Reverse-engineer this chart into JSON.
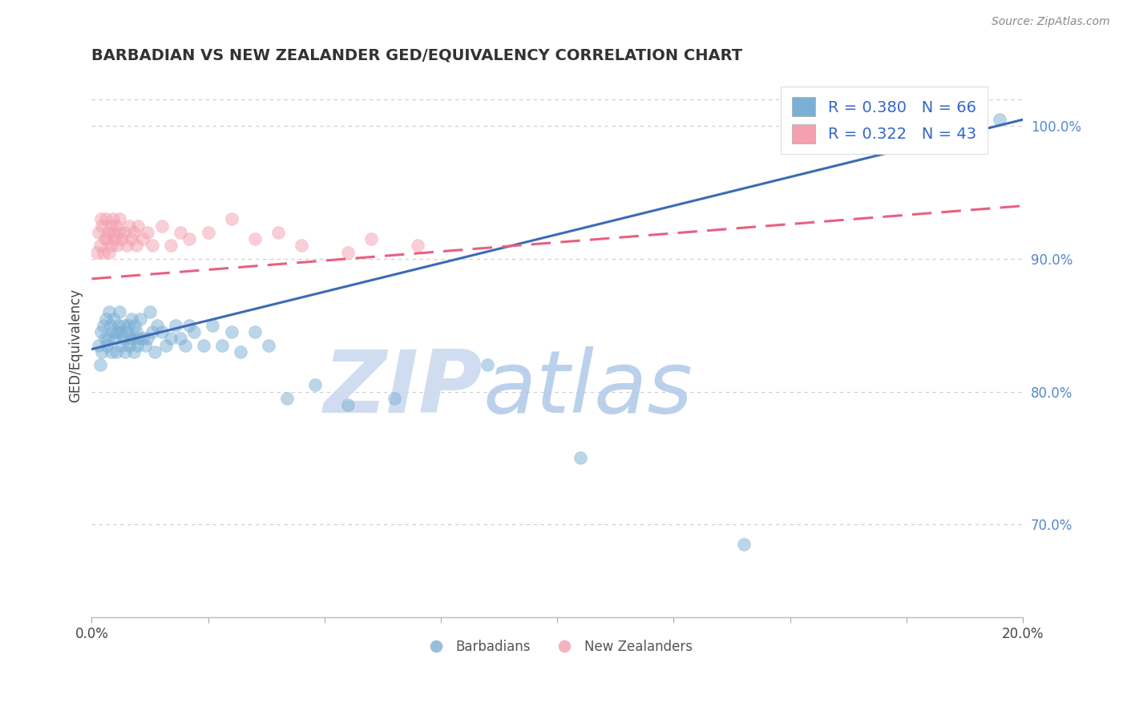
{
  "title": "BARBADIAN VS NEW ZEALANDER GED/EQUIVALENCY CORRELATION CHART",
  "source": "Source: ZipAtlas.com",
  "ylabel": "GED/Equivalency",
  "xlim": [
    0.0,
    20.0
  ],
  "ylim": [
    63.0,
    104.0
  ],
  "yticks": [
    70.0,
    80.0,
    90.0,
    100.0
  ],
  "ytick_labels": [
    "70.0%",
    "80.0%",
    "90.0%",
    "100.0%"
  ],
  "xticks": [
    0.0,
    2.5,
    5.0,
    7.5,
    10.0,
    12.5,
    15.0,
    17.5,
    20.0
  ],
  "legend_r1": "R = 0.380",
  "legend_n1": "N = 66",
  "legend_r2": "R = 0.322",
  "legend_n2": "N = 43",
  "blue_color": "#7BAFD4",
  "pink_color": "#F4A0B0",
  "blue_line_color": "#3B6BB5",
  "pink_line_color": "#E86080",
  "watermark_zip": "ZIP",
  "watermark_atlas": "atlas",
  "watermark_color_zip": "#C8D8EE",
  "watermark_color_atlas": "#B0C8E8",
  "background_color": "#FFFFFF",
  "grid_color": "#CCCCCC",
  "blue_scatter_x": [
    0.15,
    0.18,
    0.2,
    0.22,
    0.25,
    0.28,
    0.3,
    0.32,
    0.35,
    0.38,
    0.4,
    0.42,
    0.45,
    0.48,
    0.5,
    0.52,
    0.55,
    0.58,
    0.6,
    0.62,
    0.65,
    0.68,
    0.7,
    0.72,
    0.75,
    0.78,
    0.8,
    0.82,
    0.85,
    0.88,
    0.9,
    0.92,
    0.95,
    0.98,
    1.0,
    1.05,
    1.1,
    1.15,
    1.2,
    1.25,
    1.3,
    1.35,
    1.4,
    1.5,
    1.6,
    1.7,
    1.8,
    1.9,
    2.0,
    2.1,
    2.2,
    2.4,
    2.6,
    2.8,
    3.0,
    3.2,
    3.5,
    3.8,
    4.2,
    4.8,
    5.5,
    6.5,
    8.5,
    10.5,
    14.0,
    19.5
  ],
  "blue_scatter_y": [
    83.5,
    82.0,
    84.5,
    83.0,
    85.0,
    84.0,
    85.5,
    83.5,
    84.0,
    86.0,
    85.0,
    83.0,
    84.5,
    85.5,
    84.0,
    83.0,
    84.5,
    85.0,
    86.0,
    84.5,
    83.5,
    84.0,
    85.0,
    83.0,
    84.5,
    85.0,
    83.5,
    84.0,
    85.5,
    84.0,
    83.0,
    85.0,
    84.5,
    83.5,
    84.0,
    85.5,
    84.0,
    83.5,
    84.0,
    86.0,
    84.5,
    83.0,
    85.0,
    84.5,
    83.5,
    84.0,
    85.0,
    84.0,
    83.5,
    85.0,
    84.5,
    83.5,
    85.0,
    83.5,
    84.5,
    83.0,
    84.5,
    83.5,
    79.5,
    80.5,
    79.0,
    79.5,
    82.0,
    75.0,
    68.5,
    100.5
  ],
  "pink_scatter_x": [
    0.12,
    0.15,
    0.18,
    0.2,
    0.22,
    0.25,
    0.28,
    0.3,
    0.32,
    0.35,
    0.38,
    0.4,
    0.42,
    0.45,
    0.48,
    0.5,
    0.52,
    0.55,
    0.58,
    0.6,
    0.65,
    0.7,
    0.75,
    0.8,
    0.85,
    0.9,
    0.95,
    1.0,
    1.1,
    1.2,
    1.3,
    1.5,
    1.7,
    1.9,
    2.1,
    2.5,
    3.0,
    3.5,
    4.0,
    4.5,
    5.5,
    6.0,
    7.0
  ],
  "pink_scatter_y": [
    90.5,
    92.0,
    91.0,
    93.0,
    92.5,
    90.5,
    91.5,
    93.0,
    91.5,
    92.0,
    90.5,
    92.5,
    91.0,
    93.0,
    92.0,
    91.5,
    92.5,
    91.0,
    92.0,
    93.0,
    91.5,
    92.0,
    91.0,
    92.5,
    91.5,
    92.0,
    91.0,
    92.5,
    91.5,
    92.0,
    91.0,
    92.5,
    91.0,
    92.0,
    91.5,
    92.0,
    93.0,
    91.5,
    92.0,
    91.0,
    90.5,
    91.5,
    91.0
  ],
  "blue_line_x0": 0.0,
  "blue_line_y0": 83.2,
  "blue_line_x1": 20.0,
  "blue_line_y1": 100.5,
  "pink_line_x0": 0.0,
  "pink_line_y0": 88.5,
  "pink_line_x1": 20.0,
  "pink_line_y1": 94.0
}
